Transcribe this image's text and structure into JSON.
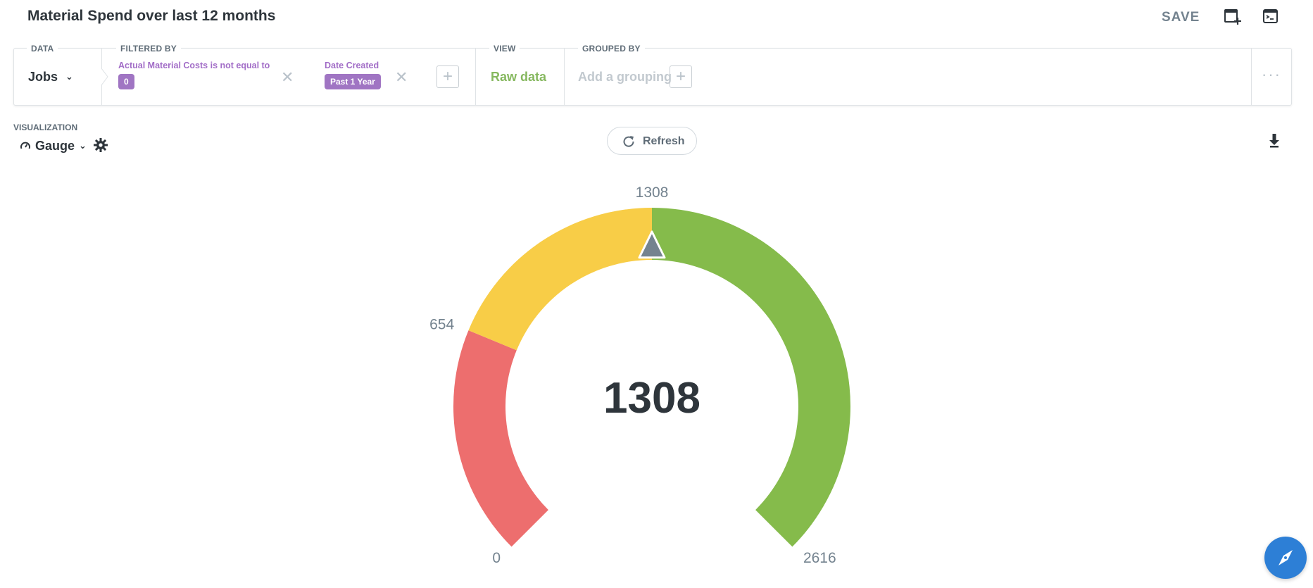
{
  "header": {
    "title": "Material Spend over last 12 months",
    "save_label": "SAVE",
    "icons": [
      "add-to-dashboard-icon",
      "sql-editor-icon"
    ]
  },
  "query": {
    "data_label": "DATA",
    "data_value": "Jobs",
    "filtered_label": "FILTERED BY",
    "filters": [
      {
        "text": "Actual Material Costs is not equal to",
        "value": "0"
      },
      {
        "text": "Date Created",
        "value": "Past 1 Year"
      }
    ],
    "view_label": "VIEW",
    "view_value": "Raw data",
    "grouped_label": "GROUPED BY",
    "grouped_placeholder": "Add a grouping",
    "more_label": "···"
  },
  "visualization": {
    "label": "VISUALIZATION",
    "type": "Gauge",
    "refresh_label": "Refresh"
  },
  "chart_data": {
    "type": "gauge",
    "value": 1308,
    "value_label": "1308",
    "min": 0,
    "max": 2616,
    "ticks": [
      {
        "value": 0,
        "label": "0"
      },
      {
        "value": 654,
        "label": "654"
      },
      {
        "value": 1308,
        "label": "1308"
      },
      {
        "value": 2616,
        "label": "2616"
      }
    ],
    "segments": [
      {
        "from": 0,
        "to": 654,
        "color": "#ed6e6e"
      },
      {
        "from": 654,
        "to": 1308,
        "color": "#f8cd47"
      },
      {
        "from": 1308,
        "to": 2616,
        "color": "#85bb4b"
      }
    ],
    "needle_color": "#74838f"
  },
  "colors": {
    "accent": "#a075c3",
    "fab": "#2d7fd6"
  }
}
